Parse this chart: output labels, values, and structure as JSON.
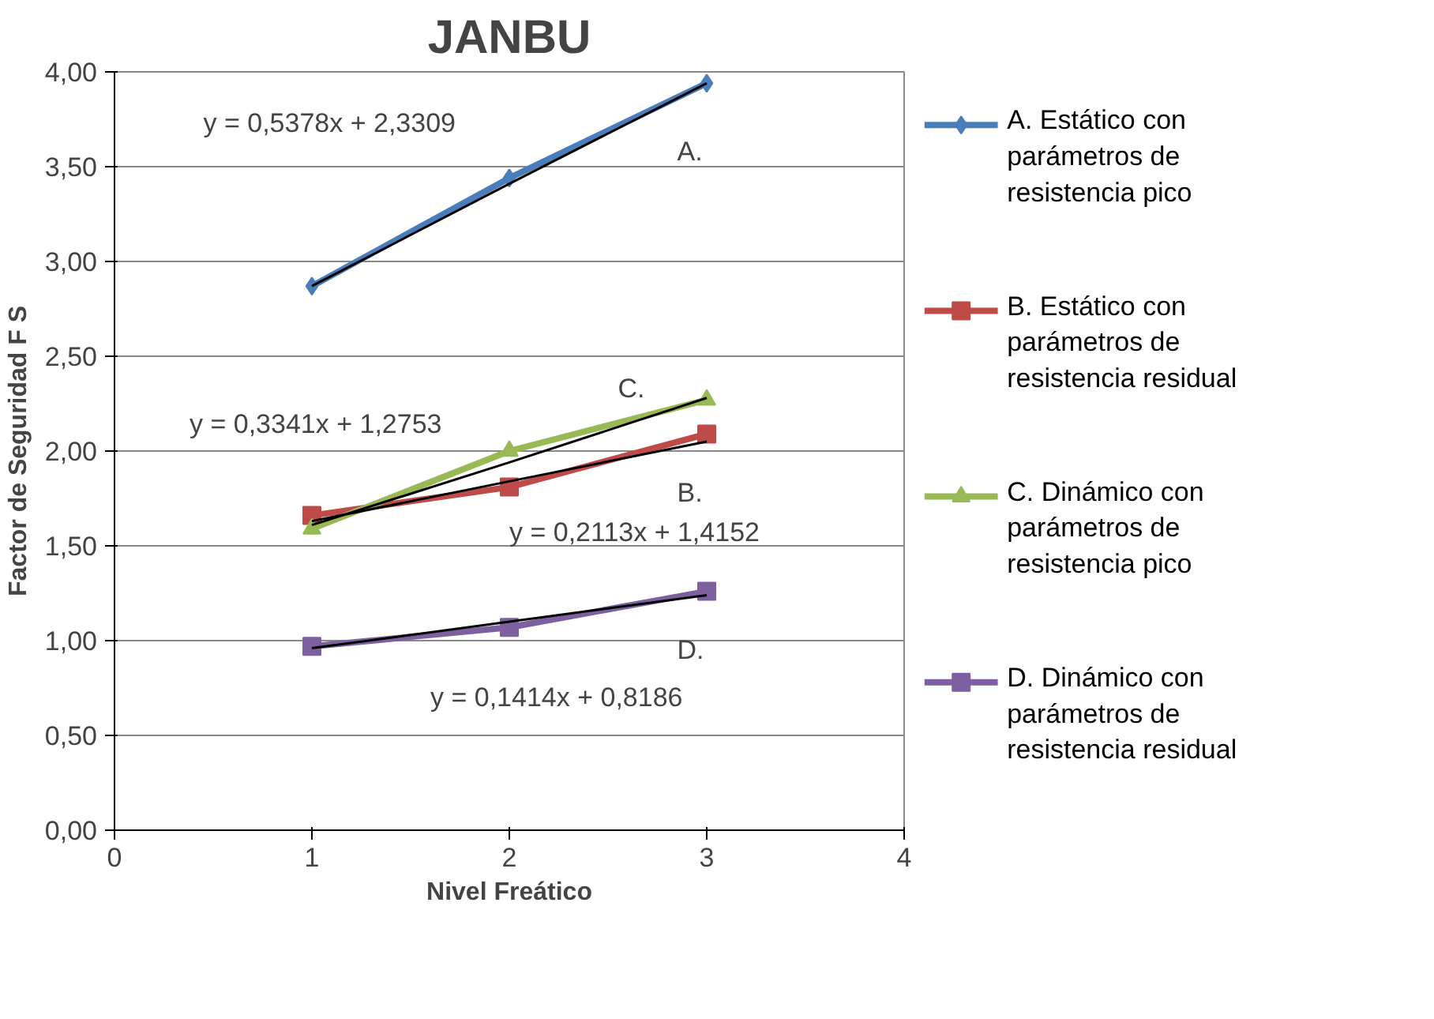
{
  "chart_data": {
    "type": "line",
    "title": "JANBU",
    "xlabel": "Nivel Freático",
    "ylabel": "Factor de Seguridad F S",
    "x": [
      1,
      2,
      3
    ],
    "series": [
      {
        "name": "A. Estático con parámetros de resistencia pico",
        "color": "#4a7ebb",
        "marker": "diamond",
        "values": [
          2.87,
          3.44,
          3.94
        ]
      },
      {
        "name": "B. Estático con parámetros de resistencia residual",
        "color": "#be4b48",
        "marker": "square",
        "values": [
          1.66,
          1.81,
          2.09
        ]
      },
      {
        "name": "C. Dinámico con parámetros de resistencia pico",
        "color": "#98b954",
        "marker": "triangle",
        "values": [
          1.59,
          2.0,
          2.27
        ]
      },
      {
        "name": "D. Dinámico con parámetros de resistencia residual",
        "color": "#7d60a0",
        "marker": "square",
        "values": [
          0.97,
          1.07,
          1.26
        ]
      },
      {
        "type": "line",
        "color": "#000000",
        "marker": "none",
        "values": [
          2.87,
          3.41,
          3.94
        ]
      },
      {
        "type": "line",
        "color": "#000000",
        "marker": "none",
        "values": [
          1.63,
          1.84,
          2.05
        ]
      },
      {
        "type": "line",
        "color": "#000000",
        "marker": "none",
        "values": [
          1.61,
          1.94,
          2.28
        ]
      },
      {
        "type": "line",
        "color": "#000000",
        "marker": "none",
        "values": [
          0.96,
          1.1,
          1.24
        ]
      }
    ],
    "annotations": [
      "y = 0,5378x + 2,3309",
      "A.",
      "y = 0,3341x + 1,2753",
      "C.",
      "B.",
      "y = 0,2113x + 1,4152",
      "D.",
      "y = 0,1414x + 0,8186"
    ],
    "xlim": [
      0,
      4
    ],
    "xticks": [
      0,
      1,
      2,
      3,
      4
    ],
    "ylim": [
      0,
      4
    ],
    "yticks": [
      {
        "value": 0,
        "label": "0,00"
      },
      {
        "value": 0.5,
        "label": "0,50"
      },
      {
        "value": 1,
        "label": "1,00"
      },
      {
        "value": 1.5,
        "label": "1,50"
      },
      {
        "value": 2,
        "label": "2,00"
      },
      {
        "value": 2.5,
        "label": "2,50"
      },
      {
        "value": 3,
        "label": "3,00"
      },
      {
        "value": 3.5,
        "label": "3,50"
      },
      {
        "value": 4,
        "label": "4,00"
      }
    ],
    "grid": "y",
    "legend": "right"
  }
}
